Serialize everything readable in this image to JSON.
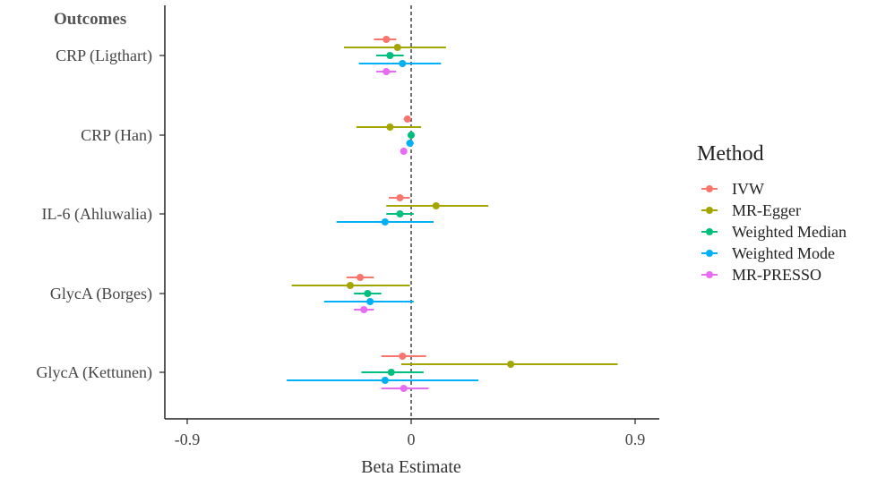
{
  "chart_data": {
    "type": "forest",
    "title": "",
    "xlabel": "Beta Estimate",
    "ylabel": "Outcomes",
    "xlim": [
      -0.9,
      0.9
    ],
    "xticks": [
      -0.9,
      0,
      0.9
    ],
    "xtick_labels": [
      "-0.9",
      "0",
      "0.9"
    ],
    "reference_line": 0,
    "grid": false,
    "legend": {
      "title": "Method",
      "placement": "right"
    },
    "outcomes": [
      "CRP (Ligthart)",
      "CRP (Han)",
      "IL-6 (Ahluwalia)",
      "GlycA (Borges)",
      "GlycA (Kettunen)"
    ],
    "series": [
      {
        "name": "IVW",
        "color": "#F8766D",
        "estimates": [
          -0.1,
          -0.015,
          -0.045,
          -0.205,
          -0.035
        ],
        "lower": [
          -0.15,
          -0.03,
          -0.09,
          -0.26,
          -0.12
        ],
        "upper": [
          -0.06,
          0.0,
          -0.005,
          -0.15,
          0.06
        ]
      },
      {
        "name": "MR-Egger",
        "color": "#A3A500",
        "estimates": [
          -0.055,
          -0.085,
          0.1,
          -0.245,
          0.4
        ],
        "lower": [
          -0.27,
          -0.22,
          -0.1,
          -0.48,
          -0.04
        ],
        "upper": [
          0.14,
          0.04,
          0.31,
          -0.005,
          0.83
        ]
      },
      {
        "name": "Weighted Median",
        "color": "#00BF7D",
        "estimates": [
          -0.085,
          0.0,
          -0.045,
          -0.175,
          -0.08
        ],
        "lower": [
          -0.14,
          -0.01,
          -0.1,
          -0.23,
          -0.2
        ],
        "upper": [
          -0.03,
          0.01,
          0.01,
          -0.12,
          0.05
        ]
      },
      {
        "name": "Weighted Mode",
        "color": "#00B0F6",
        "estimates": [
          -0.035,
          -0.005,
          -0.105,
          -0.165,
          -0.105
        ],
        "lower": [
          -0.21,
          -0.02,
          -0.3,
          -0.35,
          -0.5
        ],
        "upper": [
          0.12,
          0.01,
          0.09,
          0.01,
          0.27
        ]
      },
      {
        "name": "MR-PRESSO",
        "color": "#E76BF3",
        "estimates": [
          -0.1,
          -0.03,
          null,
          -0.19,
          -0.03
        ],
        "lower": [
          -0.14,
          -0.04,
          null,
          -0.23,
          -0.12
        ],
        "upper": [
          -0.06,
          -0.02,
          null,
          -0.15,
          0.07
        ]
      }
    ]
  }
}
